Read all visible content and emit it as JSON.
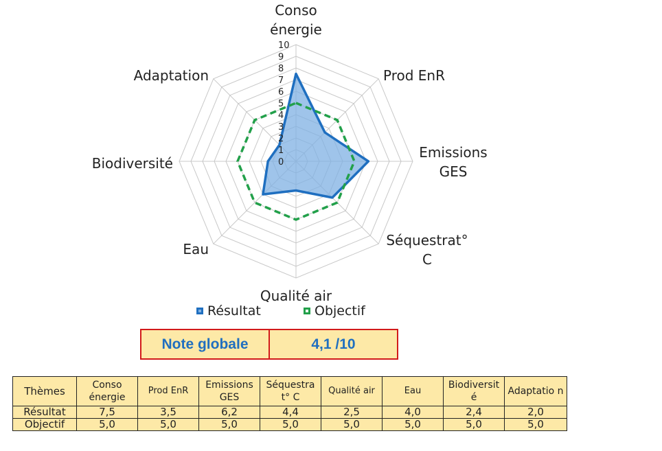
{
  "chart_data": {
    "type": "radar",
    "axes": [
      [
        "Conso",
        "énergie"
      ],
      [
        "Prod EnR"
      ],
      [
        "Emissions",
        "GES"
      ],
      [
        "Séquestrat°",
        "C"
      ],
      [
        "Qualité air"
      ],
      [
        "Eau"
      ],
      [
        "Biodiversité"
      ],
      [
        "Adaptation"
      ]
    ],
    "ticks": [
      "0",
      "1",
      "2",
      "3",
      "4",
      "5",
      "6",
      "7",
      "8",
      "9",
      "10"
    ],
    "rlim": [
      0,
      10
    ],
    "series": [
      {
        "name": "Résultat",
        "values": [
          7.5,
          3.5,
          6.2,
          4.4,
          2.5,
          4.0,
          2.4,
          2.0
        ],
        "color": "#1f6fc0",
        "fill": "#7fb0e3"
      },
      {
        "name": "Objectif",
        "values": [
          5.0,
          5.0,
          5.0,
          5.0,
          5.0,
          5.0,
          5.0,
          5.0
        ],
        "color": "#22a04a"
      }
    ],
    "legend_position": "bottom"
  },
  "note": {
    "label": "Note globale",
    "value": "4,1 /10"
  },
  "table": {
    "header": [
      "Thèmes",
      "Conso énergie",
      "Prod EnR",
      "Emissions GES",
      "Séquestra t° C",
      "Qualité air",
      "Eau",
      "Biodiversit é",
      "Adaptatio n"
    ],
    "rows": [
      {
        "label": "Résultat",
        "values": [
          "7,5",
          "3,5",
          "6,2",
          "4,4",
          "2,5",
          "4,0",
          "2,4",
          "2,0"
        ]
      },
      {
        "label": "Objectif",
        "values": [
          "5,0",
          "5,0",
          "5,0",
          "5,0",
          "5,0",
          "5,0",
          "5,0",
          "5,0"
        ]
      }
    ]
  }
}
